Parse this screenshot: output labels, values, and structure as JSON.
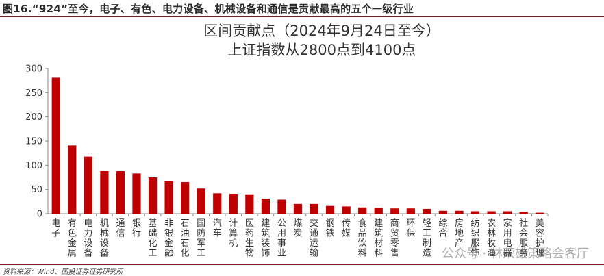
{
  "figure_title": "图16.“924”至今，电子、有色、电力设备、机械设备和通信是贡献最高的五个一级行业",
  "source": "资料来源：Wind、国投证券证券研究所",
  "watermark": "公众号 · 林荣雄策略会客厅",
  "colors": {
    "bar": "#c00000",
    "rule": "#7a1f1f"
  },
  "chart_data": {
    "type": "bar",
    "title": "区间贡献点（2024年9月24日至今）",
    "subtitle": "上证指数从2800点到4100点",
    "xlabel": "",
    "ylabel": "",
    "ylim": [
      0,
      300
    ],
    "yticks": [
      0,
      50,
      100,
      150,
      200,
      250,
      300
    ],
    "grid": false,
    "categories": [
      "电子",
      "有色金属",
      "电力设备",
      "机械设备",
      "通信",
      "银行",
      "基础化工",
      "非银金融",
      "石油石化",
      "国防军工",
      "汽车",
      "计算机",
      "医药生物",
      "建筑装饰",
      "公用事业",
      "煤炭",
      "交通运输",
      "钢铁",
      "传媒",
      "食品饮料",
      "建筑材料",
      "商贸零售",
      "环保",
      "轻工制造",
      "综合",
      "房地产",
      "纺织服饰",
      "农林牧渔",
      "家用电器",
      "社会服务",
      "美容护理"
    ],
    "values": [
      281,
      141,
      118,
      88,
      88,
      83,
      75,
      67,
      65,
      52,
      42,
      41,
      40,
      31,
      29,
      20,
      20,
      16,
      15,
      13,
      12,
      11,
      11,
      10,
      6,
      6,
      5,
      5,
      5,
      4,
      2
    ]
  }
}
